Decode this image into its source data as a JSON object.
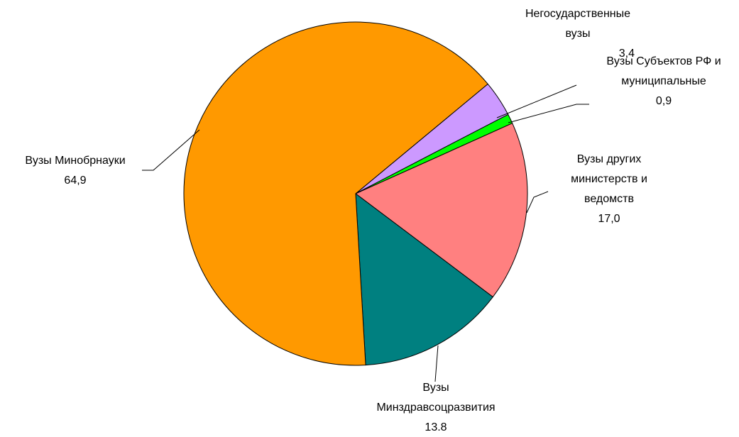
{
  "chart_data": {
    "type": "pie",
    "categories": [
      "Негосударственные вузы",
      "Вузы Субъектов РФ и муниципальные",
      "Вузы других министерств и ведомств",
      "Вузы Минздравсоцразвития",
      "Вузы Минобрнауки"
    ],
    "values": [
      3.4,
      0.9,
      17.0,
      13.8,
      64.9
    ],
    "value_labels": [
      "3,4",
      "0,9",
      "17,0",
      "13.8",
      "64,9"
    ],
    "colors": [
      "#cc99ff",
      "#00ff00",
      "#ff8080",
      "#008080",
      "#ff9900"
    ]
  }
}
